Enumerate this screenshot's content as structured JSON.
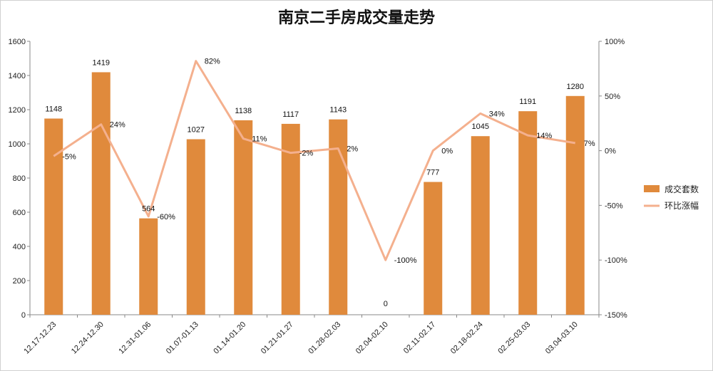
{
  "chart_data": {
    "type": "bar",
    "title": "南京二手房成交量走势",
    "categories": [
      "12.17-12.23",
      "12.24-12.30",
      "12.31-01.06",
      "01.07-01.13",
      "01.14-01.20",
      "01.21-01.27",
      "01.28-02.03",
      "02.04-02.10",
      "02.11-02.17",
      "02.18-02.24",
      "02.25-03.03",
      "03.04-03.10"
    ],
    "series": [
      {
        "name": "成交套数",
        "type": "bar",
        "axis": "left",
        "color": "#E08A3C",
        "values": [
          1148,
          1419,
          564,
          1027,
          1138,
          1117,
          1143,
          0,
          777,
          1045,
          1191,
          1280
        ],
        "labels": [
          "1148",
          "1419",
          "564",
          "1027",
          "1138",
          "1117",
          "1143",
          "0",
          "777",
          "1045",
          "1191",
          "1280"
        ]
      },
      {
        "name": "环比涨幅",
        "type": "line",
        "axis": "right",
        "color": "#F4B08E",
        "values": [
          -5,
          24,
          -60,
          82,
          11,
          -2,
          2,
          -100,
          0,
          34,
          14,
          7
        ],
        "labels": [
          "-5%",
          "24%",
          "-60%",
          "82%",
          "11%",
          "-2%",
          "2%",
          "-100%",
          "0%",
          "34%",
          "14%",
          "7%"
        ]
      }
    ],
    "y_left": {
      "min": 0,
      "max": 1600,
      "ticks": [
        "0",
        "200",
        "400",
        "600",
        "800",
        "1000",
        "1200",
        "1400",
        "1600"
      ]
    },
    "y_right": {
      "min": -150,
      "max": 100,
      "ticks": [
        "-150%",
        "-100%",
        "-50%",
        "0%",
        "50%",
        "100%"
      ]
    },
    "grid": false,
    "legend_position": "right"
  }
}
